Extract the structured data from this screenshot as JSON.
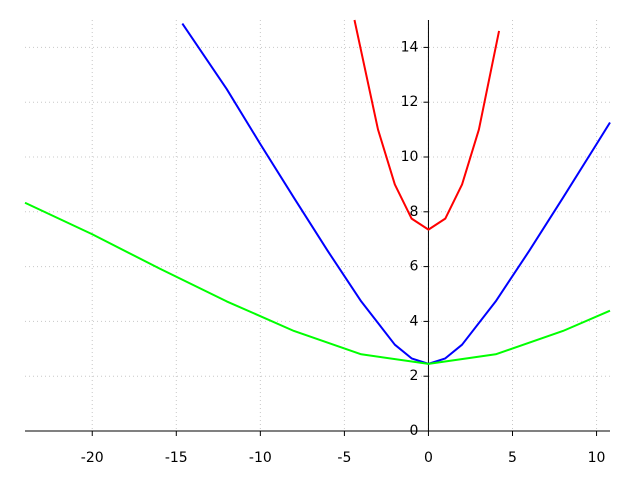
{
  "chart_data": {
    "type": "line",
    "xlim": [
      -24,
      10.8
    ],
    "ylim": [
      0,
      15
    ],
    "xticks": [
      -20,
      -15,
      -10,
      -5,
      0,
      5,
      10
    ],
    "yticks": [
      0,
      2,
      4,
      6,
      8,
      10,
      12,
      14
    ],
    "grid": true,
    "series": [
      {
        "color": "#ff0000",
        "x": [
          -4.4,
          -3,
          -2,
          -1,
          0,
          1,
          2,
          3,
          4.2
        ],
        "values": [
          15.0,
          11.0,
          9.0,
          7.75,
          7.35,
          7.75,
          9.0,
          11.0,
          14.6
        ]
      },
      {
        "color": "#0000ff",
        "x": [
          -14.64,
          -12,
          -10,
          -8,
          -6,
          -4,
          -2,
          -1,
          0,
          1,
          2,
          4,
          6,
          8,
          10,
          10.8
        ],
        "values": [
          14.87,
          12.48,
          10.47,
          8.51,
          6.58,
          4.73,
          3.15,
          2.65,
          2.45,
          2.65,
          3.15,
          4.73,
          6.58,
          8.51,
          10.47,
          11.26
        ]
      },
      {
        "color": "#00ff00",
        "x": [
          -24,
          -20,
          -16,
          -12,
          -8,
          -4,
          0,
          4,
          8,
          10.8
        ],
        "values": [
          8.33,
          7.18,
          5.93,
          4.73,
          3.65,
          2.8,
          2.45,
          2.8,
          3.65,
          4.39
        ]
      }
    ]
  }
}
